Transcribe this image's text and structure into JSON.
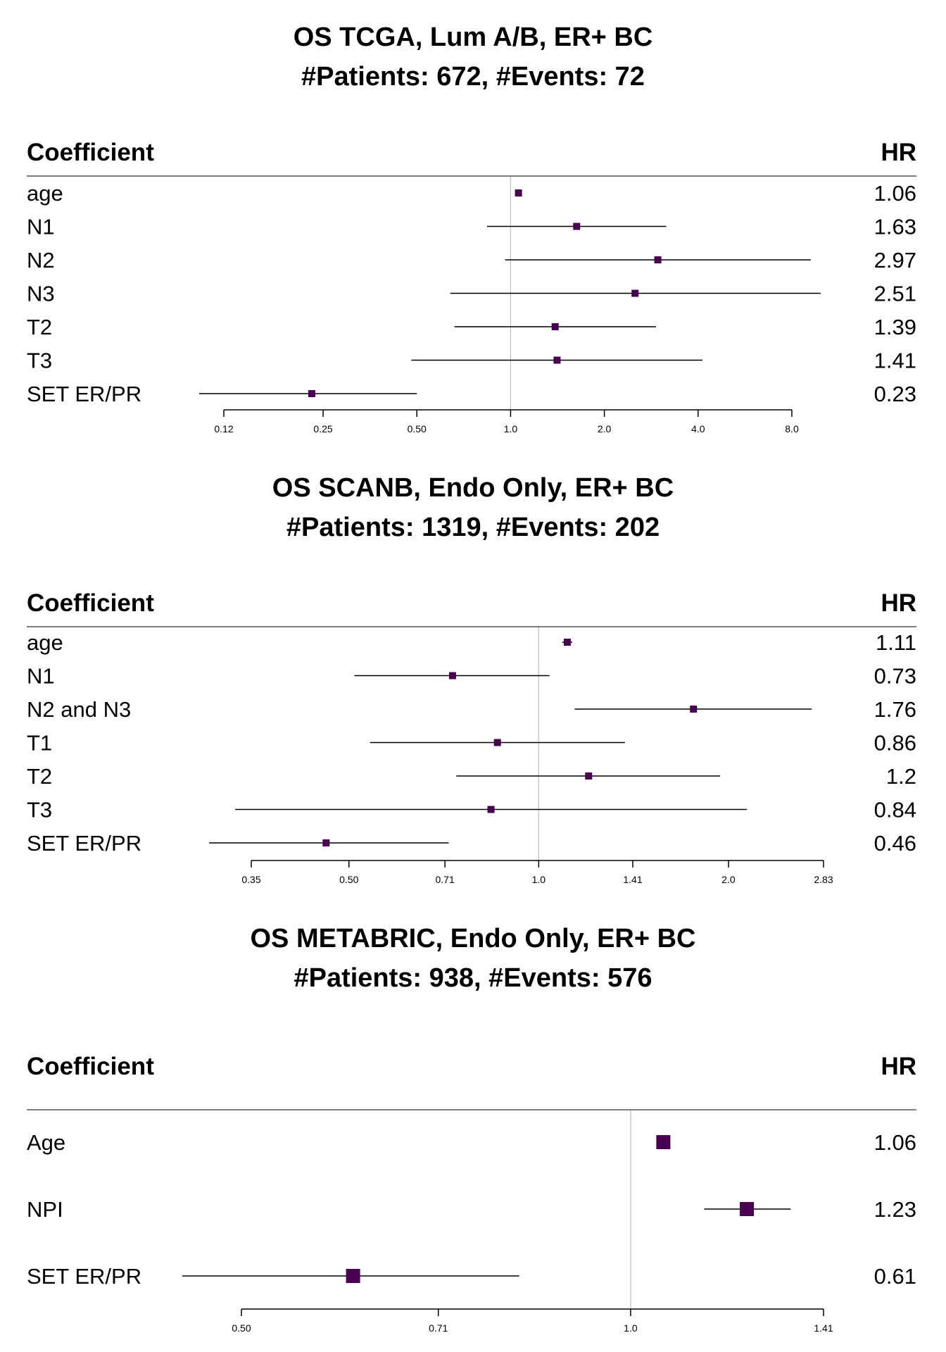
{
  "chart_data": [
    {
      "type": "forest",
      "title": "OS TCGA, Lum A/B, ER+ BC",
      "subtitle": "#Patients: 672, #Events: 72",
      "columns": {
        "left": "Coefficient",
        "right": "HR"
      },
      "x_scale": "log2",
      "xlim": [
        0.12,
        8.0
      ],
      "ticks": [
        "0.12",
        "0.25",
        "0.50",
        "1.0",
        "2.0",
        "4.0",
        "8.0"
      ],
      "reference_line": 1.0,
      "rows": [
        {
          "label": "age",
          "hr": 1.06,
          "hr_text": "1.06",
          "lower": 1.04,
          "upper": 1.08
        },
        {
          "label": "N1",
          "hr": 1.63,
          "hr_text": "1.63",
          "lower": 0.84,
          "upper": 3.16
        },
        {
          "label": "N2",
          "hr": 2.97,
          "hr_text": "2.97",
          "lower": 0.96,
          "upper": 9.2
        },
        {
          "label": "N3",
          "hr": 2.51,
          "hr_text": "2.51",
          "lower": 0.64,
          "upper": 9.9
        },
        {
          "label": "T2",
          "hr": 1.39,
          "hr_text": "1.39",
          "lower": 0.66,
          "upper": 2.93
        },
        {
          "label": "T3",
          "hr": 1.41,
          "hr_text": "1.41",
          "lower": 0.48,
          "upper": 4.13
        },
        {
          "label": "SET ER/PR",
          "hr": 0.23,
          "hr_text": "0.23",
          "lower": 0.1,
          "upper": 0.5
        }
      ]
    },
    {
      "type": "forest",
      "title": "OS SCANB, Endo Only, ER+ BC",
      "subtitle": "#Patients: 1319, #Events: 202",
      "columns": {
        "left": "Coefficient",
        "right": "HR"
      },
      "x_scale": "log2",
      "xlim": [
        0.35,
        2.83
      ],
      "ticks": [
        "0.35",
        "0.50",
        "0.71",
        "1.0",
        "1.41",
        "2.0",
        "2.83"
      ],
      "reference_line": 1.0,
      "rows": [
        {
          "label": "age",
          "hr": 1.11,
          "hr_text": "1.11",
          "lower": 1.09,
          "upper": 1.13
        },
        {
          "label": "N1",
          "hr": 0.73,
          "hr_text": "0.73",
          "lower": 0.51,
          "upper": 1.04
        },
        {
          "label": "N2 and N3",
          "hr": 1.76,
          "hr_text": "1.76",
          "lower": 1.14,
          "upper": 2.71
        },
        {
          "label": "T1",
          "hr": 0.86,
          "hr_text": "0.86",
          "lower": 0.54,
          "upper": 1.37
        },
        {
          "label": "T2",
          "hr": 1.2,
          "hr_text": "1.2",
          "lower": 0.74,
          "upper": 1.94
        },
        {
          "label": "T3",
          "hr": 0.84,
          "hr_text": "0.84",
          "lower": 0.33,
          "upper": 2.14
        },
        {
          "label": "SET ER/PR",
          "hr": 0.46,
          "hr_text": "0.46",
          "lower": 0.3,
          "upper": 0.72
        }
      ]
    },
    {
      "type": "forest",
      "title": "OS METABRIC, Endo Only, ER+ BC",
      "subtitle": "#Patients: 938, #Events: 576",
      "columns": {
        "left": "Coefficient",
        "right": "HR"
      },
      "x_scale": "log2",
      "xlim": [
        0.5,
        1.41
      ],
      "ticks": [
        "0.50",
        "0.71",
        "1.0",
        "1.41"
      ],
      "reference_line": 1.0,
      "rows": [
        {
          "label": "Age",
          "hr": 1.06,
          "hr_text": "1.06",
          "lower": 1.055,
          "upper": 1.065
        },
        {
          "label": "NPI",
          "hr": 1.23,
          "hr_text": "1.23",
          "lower": 1.14,
          "upper": 1.33
        },
        {
          "label": "SET ER/PR",
          "hr": 0.61,
          "hr_text": "0.61",
          "lower": 0.45,
          "upper": 0.82
        }
      ]
    }
  ],
  "colors": {
    "marker": "#4a0050",
    "ci_line": "#000000",
    "reference_line": "#c8c8c8",
    "header_rule": "#555555"
  }
}
